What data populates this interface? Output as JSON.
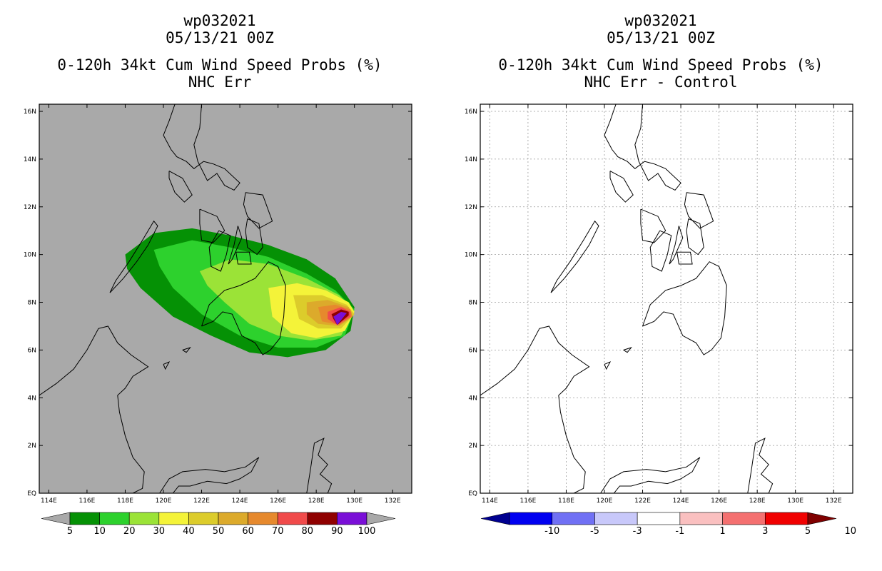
{
  "left": {
    "title_line1": "wp032021",
    "title_line2": "05/13/21 00Z",
    "title_line3": "0-120h 34kt Cum Wind Speed Probs (%)",
    "title_line4": "NHC Err",
    "background": "#a9a9a9",
    "colorbar": {
      "labels": [
        "5",
        "10",
        "20",
        "30",
        "40",
        "50",
        "60",
        "70",
        "80",
        "90",
        "100"
      ],
      "colors": [
        "#059105",
        "#2dd12d",
        "#9be337",
        "#f4f339",
        "#dccc2b",
        "#dcaa2b",
        "#e6892d",
        "#f04a4a",
        "#8f0000",
        "#7a0fd7"
      ],
      "under": "#a9a9a9",
      "over": "#a9a9a9"
    }
  },
  "right": {
    "title_line1": "wp032021",
    "title_line2": "05/13/21 00Z",
    "title_line3": "0-120h 34kt Cum Wind Speed Probs (%)",
    "title_line4": "NHC Err - Control",
    "background": "#ffffff",
    "colorbar": {
      "labels": [
        "-10",
        "-5",
        "-3",
        "-1",
        "1",
        "3",
        "5",
        "10"
      ],
      "colors": [
        "#0000f0",
        "#7070f4",
        "#c8c8fa",
        "#ffffff",
        "#fac0c0",
        "#f47070",
        "#f00000"
      ],
      "under": "#000090",
      "over": "#800000"
    }
  },
  "chart_data": [
    {
      "type": "heatmap",
      "title": "0-120h 34kt Cum Wind Speed Probs (%) — NHC Err",
      "x_ticks": [
        "114E",
        "116E",
        "118E",
        "120E",
        "122E",
        "124E",
        "126E",
        "128E",
        "130E",
        "132E"
      ],
      "y_ticks": [
        "EQ",
        "2N",
        "4N",
        "6N",
        "8N",
        "10N",
        "12N",
        "14N",
        "16N"
      ],
      "xlim": [
        113.5,
        133
      ],
      "ylim": [
        0,
        16.3
      ],
      "levels": [
        5,
        10,
        20,
        30,
        40,
        50,
        60,
        70,
        80,
        90,
        100
      ],
      "contours": [
        {
          "level": 5,
          "color": "#059105",
          "points": [
            [
              118,
              10
            ],
            [
              119.5,
              10.9
            ],
            [
              121.5,
              11.1
            ],
            [
              123.5,
              10.8
            ],
            [
              125.5,
              10.4
            ],
            [
              127.5,
              9.8
            ],
            [
              129,
              9
            ],
            [
              130,
              7.8
            ],
            [
              129.8,
              6.8
            ],
            [
              128.5,
              6
            ],
            [
              126.5,
              5.7
            ],
            [
              124.5,
              5.9
            ],
            [
              122.5,
              6.6
            ],
            [
              120.5,
              7.4
            ],
            [
              118.8,
              8.6
            ],
            [
              118.1,
              9.4
            ]
          ]
        },
        {
          "level": 10,
          "color": "#2dd12d",
          "points": [
            [
              119.5,
              10.2
            ],
            [
              121.5,
              10.6
            ],
            [
              123.5,
              10.3
            ],
            [
              125.5,
              9.9
            ],
            [
              127.5,
              9.2
            ],
            [
              129,
              8.5
            ],
            [
              130,
              7.7
            ],
            [
              129.5,
              6.6
            ],
            [
              128,
              6.1
            ],
            [
              126,
              6.1
            ],
            [
              124,
              6.6
            ],
            [
              122,
              7.5
            ],
            [
              120.5,
              8.6
            ],
            [
              119.8,
              9.5
            ]
          ]
        },
        {
          "level": 20,
          "color": "#9be337",
          "points": [
            [
              121.9,
              9.3
            ],
            [
              123.5,
              9.8
            ],
            [
              125.5,
              9.6
            ],
            [
              127.5,
              9
            ],
            [
              129.2,
              8.3
            ],
            [
              130,
              7.6
            ],
            [
              129.3,
              6.6
            ],
            [
              127.7,
              6.4
            ],
            [
              126,
              6.6
            ],
            [
              124.5,
              7.1
            ],
            [
              123.2,
              8
            ],
            [
              122.3,
              8.7
            ]
          ]
        },
        {
          "level": 30,
          "color": "#f4f339",
          "points": [
            [
              125.5,
              8.6
            ],
            [
              127,
              8.8
            ],
            [
              128.5,
              8.5
            ],
            [
              129.7,
              8
            ],
            [
              130,
              7.6
            ],
            [
              129.5,
              6.8
            ],
            [
              128,
              6.5
            ],
            [
              126.7,
              6.7
            ],
            [
              125.7,
              7.4
            ]
          ]
        },
        {
          "level": 40,
          "color": "#dccc2b",
          "points": [
            [
              126.8,
              8.3
            ],
            [
              128.3,
              8.3
            ],
            [
              129.6,
              7.9
            ],
            [
              130,
              7.5
            ],
            [
              129.3,
              6.9
            ],
            [
              128.1,
              6.9
            ],
            [
              127.1,
              7.3
            ]
          ]
        },
        {
          "level": 50,
          "color": "#dcaa2b",
          "points": [
            [
              127.5,
              8
            ],
            [
              128.6,
              8.1
            ],
            [
              129.7,
              7.8
            ],
            [
              129.9,
              7.4
            ],
            [
              129.2,
              7
            ],
            [
              128.1,
              7.1
            ],
            [
              127.5,
              7.5
            ]
          ]
        },
        {
          "level": 60,
          "color": "#e6892d",
          "points": [
            [
              128.1,
              7.8
            ],
            [
              129,
              7.9
            ],
            [
              129.8,
              7.7
            ],
            [
              129.9,
              7.4
            ],
            [
              129.2,
              7.05
            ],
            [
              128.3,
              7.2
            ]
          ]
        },
        {
          "level": 70,
          "color": "#f04a4a",
          "points": [
            [
              128.6,
              7.6
            ],
            [
              129.3,
              7.8
            ],
            [
              129.8,
              7.6
            ],
            [
              129.8,
              7.4
            ],
            [
              129.1,
              7.05
            ],
            [
              128.6,
              7.3
            ]
          ]
        },
        {
          "level": 80,
          "color": "#8f0000",
          "points": [
            [
              128.8,
              7.5
            ],
            [
              129.3,
              7.7
            ],
            [
              129.7,
              7.6
            ],
            [
              129.7,
              7.45
            ],
            [
              129.1,
              7.05
            ],
            [
              128.9,
              7.3
            ]
          ]
        },
        {
          "level": 90,
          "color": "#7a0fd7",
          "points": [
            [
              128.9,
              7.4
            ],
            [
              129.3,
              7.6
            ],
            [
              129.6,
              7.55
            ],
            [
              129.5,
              7.45
            ],
            [
              129.1,
              7.05
            ]
          ]
        }
      ]
    },
    {
      "type": "heatmap",
      "title": "0-120h 34kt Cum Wind Speed Probs (%) — NHC Err - Control",
      "x_ticks": [
        "114E",
        "116E",
        "118E",
        "120E",
        "122E",
        "124E",
        "126E",
        "128E",
        "130E",
        "132E"
      ],
      "y_ticks": [
        "EQ",
        "2N",
        "4N",
        "6N",
        "8N",
        "10N",
        "12N",
        "14N",
        "16N"
      ],
      "xlim": [
        113.5,
        133
      ],
      "ylim": [
        0,
        16.3
      ],
      "levels": [
        -10,
        -5,
        -3,
        -1,
        1,
        3,
        5,
        10
      ],
      "grid": true,
      "contours": []
    }
  ]
}
